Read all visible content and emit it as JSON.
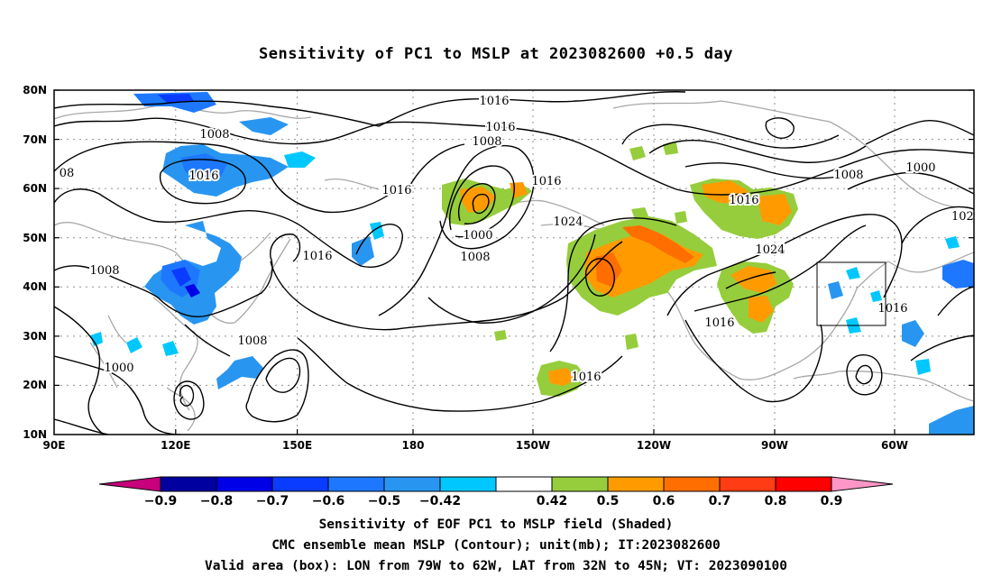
{
  "title": "Sensitivity of PC1 to MSLP at 2023082600 +0.5 day",
  "axes": {
    "lat_labels": [
      "80N",
      "70N",
      "60N",
      "50N",
      "40N",
      "30N",
      "20N",
      "10N"
    ],
    "lon_labels": [
      "90E",
      "120E",
      "150E",
      "180",
      "150W",
      "120W",
      "90W",
      "60W"
    ]
  },
  "contour_labels": [
    "1016",
    "1016",
    "1008",
    "1016",
    "1008",
    "08",
    "1016",
    "1016",
    "1024",
    "1008",
    "1000",
    "1008",
    "1000",
    "1008",
    "1016",
    "1016",
    "1024",
    "1016",
    "1016",
    "1008",
    "1000",
    "1016",
    "102"
  ],
  "colorbar": {
    "labels": [
      "-0.9",
      "-0.8",
      "-0.7",
      "-0.6",
      "-0.5",
      "-0.42",
      "0.42",
      "0.5",
      "0.6",
      "0.7",
      "0.8",
      "0.9"
    ],
    "colors": [
      "#c8007c",
      "#0000a0",
      "#0000e6",
      "#0a3cff",
      "#1e78ff",
      "#2896f0",
      "#00c8ff",
      "#ffffff",
      "#96cd3c",
      "#ff9b00",
      "#ff6e00",
      "#ff3c14",
      "#ff0000",
      "#ff96c8"
    ]
  },
  "captions": [
    "Sensitivity of EOF PC1 to MSLP field (Shaded)",
    "CMC ensemble mean MSLP (Contour); unit(mb); IT:2023082600",
    "Valid area (box): LON from 79W to 62W, LAT from 32N to 45N; VT: 2023090100"
  ]
}
